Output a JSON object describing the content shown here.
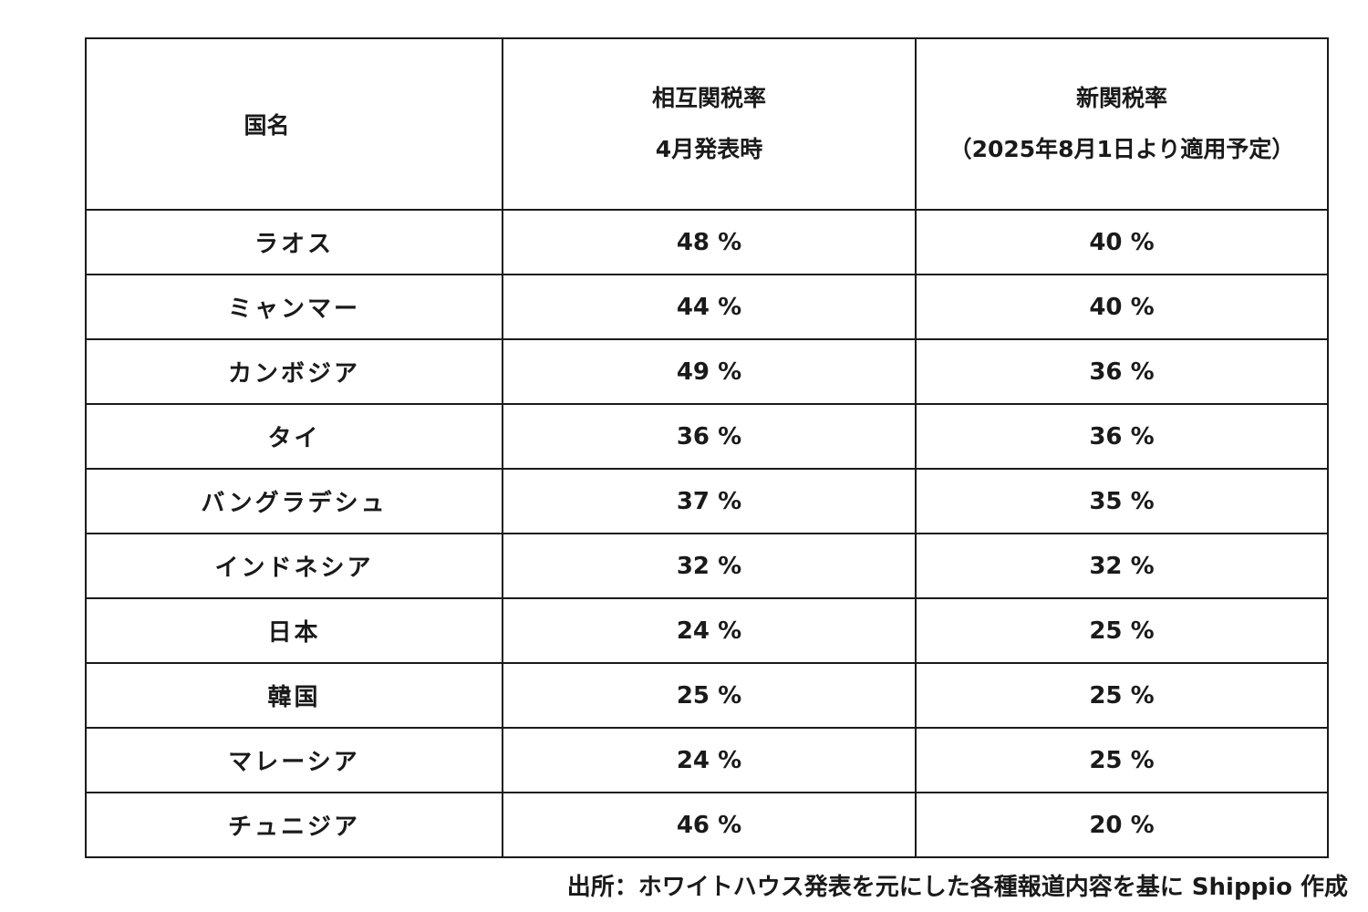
{
  "table": {
    "headers": {
      "country": "国名",
      "reciprocal_line1": "相互関税率",
      "reciprocal_line2": "4月発表時",
      "new_line1": "新関税率",
      "new_line2": "（2025年8月1日より適用予定）"
    },
    "rows": [
      {
        "country": "ラオス",
        "april": "48 %",
        "new": "40 %"
      },
      {
        "country": "ミャンマー",
        "april": "44 %",
        "new": "40 %"
      },
      {
        "country": "カンボジア",
        "april": "49 %",
        "new": "36 %"
      },
      {
        "country": "タイ",
        "april": "36 %",
        "new": "36 %"
      },
      {
        "country": "バングラデシュ",
        "april": "37 %",
        "new": "35 %"
      },
      {
        "country": "インドネシア",
        "april": "32 %",
        "new": "32 %"
      },
      {
        "country": "日本",
        "april": "24 %",
        "new": "25 %"
      },
      {
        "country": "韓国",
        "april": "25 %",
        "new": "25 %"
      },
      {
        "country": "マレーシア",
        "april": "24 %",
        "new": "25 %"
      },
      {
        "country": "チュニジア",
        "april": "46 %",
        "new": "20 %"
      }
    ]
  },
  "source_note": "出所：ホワイトハウス発表を元にした各種報道内容を基に Shippio 作成"
}
